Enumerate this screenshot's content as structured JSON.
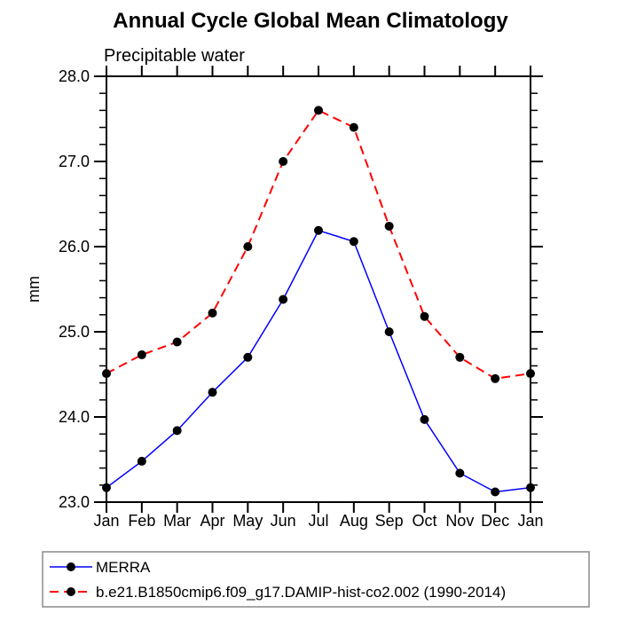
{
  "title": "Annual Cycle Global Mean Climatology",
  "subtitle": "Precipitable water",
  "chart_data": {
    "type": "line",
    "title": "Annual Cycle Global Mean Climatology",
    "subtitle": "Precipitable water",
    "xlabel": "",
    "ylabel": "mm",
    "x_tick_labels": [
      "Jan",
      "Feb",
      "Mar",
      "Apr",
      "May",
      "Jun",
      "Jul",
      "Aug",
      "Sep",
      "Oct",
      "Nov",
      "Dec",
      "Jan"
    ],
    "ylim": [
      23.0,
      28.0
    ],
    "ytick_major_interval": 1.0,
    "ytick_minor_interval": 0.2,
    "ytick_labels": [
      "23.0",
      "24.0",
      "25.0",
      "26.0",
      "27.0",
      "28.0"
    ],
    "grid": false,
    "frame": "box",
    "legend_position": "bottom-left",
    "marker": {
      "shape": "circle",
      "color": "#000000",
      "radius": 5
    },
    "series": [
      {
        "name": "MERRA",
        "color": "#0000ff",
        "line_style": "solid",
        "values": [
          23.17,
          23.48,
          23.84,
          24.29,
          24.7,
          25.38,
          26.19,
          26.06,
          25.0,
          23.97,
          23.34,
          23.12,
          23.17
        ]
      },
      {
        "name": "b.e21.B1850cmip6.f09_g17.DAMIP-hist-co2.002 (1990-2014)",
        "color": "#ff0000",
        "line_style": "dashed",
        "values": [
          24.51,
          24.73,
          24.88,
          25.22,
          26.0,
          27.0,
          27.6,
          27.4,
          26.24,
          25.18,
          24.7,
          24.45,
          24.51
        ]
      }
    ]
  }
}
